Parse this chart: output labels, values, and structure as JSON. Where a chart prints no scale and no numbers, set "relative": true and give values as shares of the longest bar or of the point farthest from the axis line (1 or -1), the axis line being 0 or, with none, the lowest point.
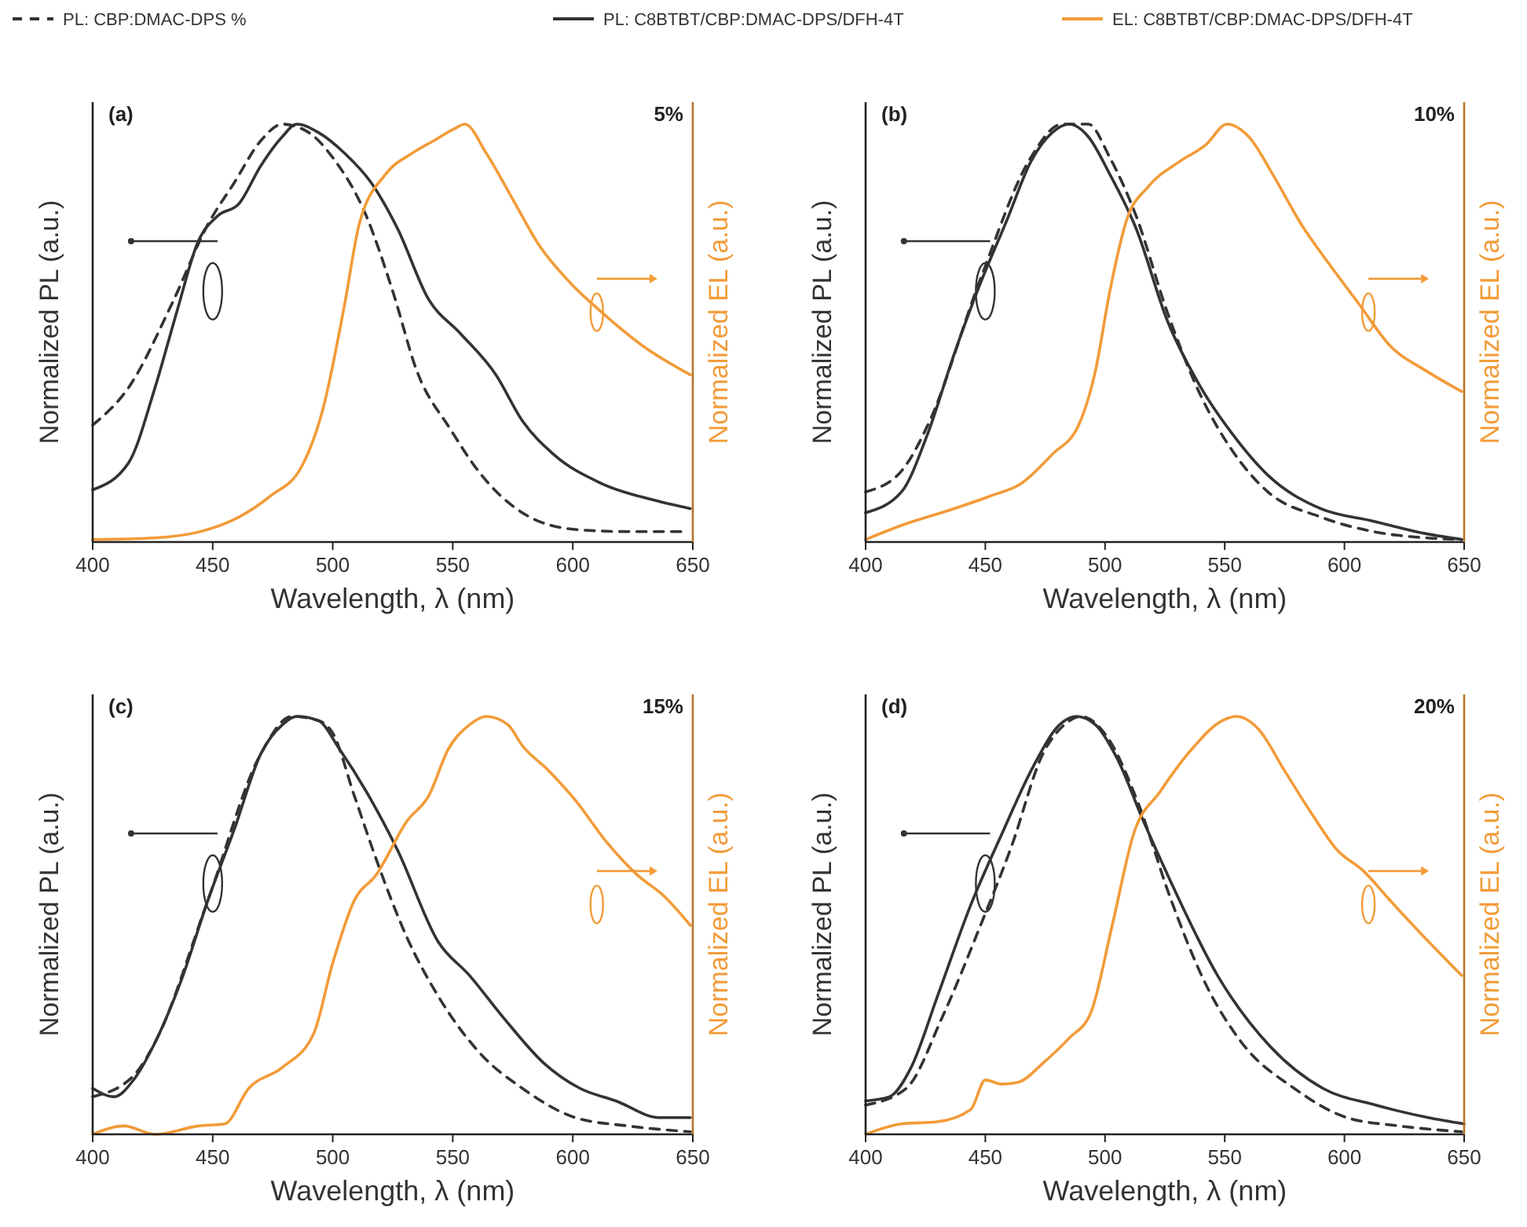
{
  "chart_data": [
    {
      "type": "line",
      "relative": true,
      "legend": "top",
      "marker": "none",
      "xlabel": "Wavelength, λ (nm)",
      "ylabel": "Normalized PL (a.u.)",
      "y2label": "Normalized EL (a.u.)",
      "xlim": [
        400,
        650
      ],
      "xticks": [
        400,
        450,
        500,
        550,
        600,
        650
      ],
      "annotations": [
        "(a)",
        "5%"
      ],
      "series": [
        {
          "name": "PL: CBP:DMAC-DPS %",
          "color": "#333333",
          "line_style": "dashed",
          "x": [
            400,
            415,
            433,
            448,
            459,
            470,
            479,
            490,
            500,
            514,
            525,
            535,
            549,
            562,
            579,
            601,
            623,
            647
          ],
          "values": [
            0.28,
            0.37,
            0.57,
            0.76,
            0.86,
            0.96,
            1.0,
            0.98,
            0.92,
            0.78,
            0.6,
            0.41,
            0.27,
            0.16,
            0.07,
            0.03,
            0.025,
            0.025
          ]
        },
        {
          "name": "PL: C8BTBT/CBP:DMAC-DPS/DFH-4T",
          "color": "#333333",
          "line_style": "solid",
          "x": [
            400,
            415,
            426,
            435,
            444,
            452,
            461,
            470,
            479,
            485,
            494,
            505,
            516,
            527,
            540,
            553,
            568,
            579,
            592,
            612,
            634,
            649
          ],
          "values": [
            0.125,
            0.19,
            0.37,
            0.55,
            0.72,
            0.78,
            0.81,
            0.9,
            0.97,
            1.0,
            0.98,
            0.93,
            0.86,
            0.75,
            0.58,
            0.5,
            0.4,
            0.29,
            0.21,
            0.14,
            0.1,
            0.08
          ]
        },
        {
          "name": "EL: C8BTBT/CBP:DMAC-DPS/DFH-4T",
          "color": "#f29b38",
          "line_style": "solid",
          "axis": "y2",
          "x": [
            400,
            426,
            448,
            461,
            474,
            487,
            496,
            505,
            511,
            522,
            533,
            542,
            551,
            555,
            564,
            575,
            586,
            599,
            612,
            629,
            649
          ],
          "values": [
            0.006,
            0.01,
            0.03,
            0.06,
            0.11,
            0.18,
            0.32,
            0.57,
            0.76,
            0.88,
            0.93,
            0.96,
            0.99,
            1.0,
            0.93,
            0.82,
            0.71,
            0.62,
            0.55,
            0.47,
            0.4
          ]
        }
      ]
    },
    {
      "type": "line",
      "relative": true,
      "marker": "none",
      "xlabel": "Wavelength, λ (nm)",
      "ylabel": "Normalized PL (a.u.)",
      "y2label": "Normalized EL (a.u.)",
      "xlim": [
        400,
        650
      ],
      "xticks": [
        400,
        450,
        500,
        550,
        600,
        650
      ],
      "annotations": [
        "(b)",
        "10%"
      ],
      "series": [
        {
          "color": "#333333",
          "line_style": "dashed",
          "x": [
            400,
            415,
            426,
            448,
            469,
            482,
            493,
            502,
            513,
            526,
            540,
            553,
            568,
            590,
            612,
            634,
            649
          ],
          "values": [
            0.12,
            0.17,
            0.28,
            0.63,
            0.92,
            1.0,
            1.0,
            0.92,
            0.78,
            0.55,
            0.35,
            0.22,
            0.12,
            0.06,
            0.025,
            0.01,
            0.006
          ]
        },
        {
          "color": "#333333",
          "line_style": "solid",
          "x": [
            400,
            415,
            426,
            437,
            448,
            459,
            469,
            478,
            485,
            493,
            502,
            513,
            526,
            540,
            553,
            568,
            590,
            612,
            634,
            649
          ],
          "values": [
            0.07,
            0.12,
            0.26,
            0.45,
            0.62,
            0.77,
            0.91,
            0.98,
            1.0,
            0.97,
            0.88,
            0.75,
            0.53,
            0.37,
            0.26,
            0.16,
            0.08,
            0.05,
            0.02,
            0.006
          ]
        },
        {
          "color": "#f29b38",
          "line_style": "solid",
          "axis": "y2",
          "x": [
            400,
            415,
            437,
            452,
            465,
            478,
            489,
            496,
            502,
            509,
            518,
            531,
            542,
            551,
            560,
            571,
            582,
            593,
            606,
            619,
            634,
            649
          ],
          "values": [
            0.006,
            0.04,
            0.08,
            0.11,
            0.14,
            0.21,
            0.28,
            0.41,
            0.6,
            0.77,
            0.85,
            0.91,
            0.95,
            1.0,
            0.97,
            0.87,
            0.76,
            0.67,
            0.57,
            0.47,
            0.41,
            0.36
          ]
        }
      ]
    },
    {
      "type": "line",
      "relative": true,
      "marker": "none",
      "xlabel": "Wavelength, λ (nm)",
      "ylabel": "Normalized PL (a.u.)",
      "y2label": "Normalized EL (a.u.)",
      "xlim": [
        400,
        650
      ],
      "xticks": [
        400,
        450,
        500,
        550,
        600,
        650
      ],
      "annotations": [
        "(c)",
        "15%"
      ],
      "series": [
        {
          "color": "#333333",
          "line_style": "dashed",
          "x": [
            400,
            417,
            426,
            448,
            470,
            483,
            494,
            500,
            509,
            518,
            531,
            544,
            562,
            579,
            601,
            623,
            649
          ],
          "values": [
            0.09,
            0.14,
            0.22,
            0.56,
            0.91,
            1.0,
            0.99,
            0.96,
            0.81,
            0.66,
            0.47,
            0.33,
            0.19,
            0.11,
            0.04,
            0.02,
            0.006
          ]
        },
        {
          "color": "#333333",
          "line_style": "solid",
          "x": [
            400,
            409,
            417,
            426,
            437,
            448,
            459,
            470,
            479,
            485,
            494,
            503,
            514,
            527,
            544,
            557,
            571,
            588,
            603,
            618,
            636,
            649
          ],
          "values": [
            0.11,
            0.09,
            0.13,
            0.22,
            0.37,
            0.56,
            0.73,
            0.91,
            0.98,
            1.0,
            0.99,
            0.92,
            0.82,
            0.68,
            0.46,
            0.38,
            0.28,
            0.17,
            0.11,
            0.08,
            0.04,
            0.04
          ]
        },
        {
          "color": "#f29b38",
          "line_style": "solid",
          "axis": "y2",
          "x": [
            400,
            413,
            426,
            444,
            455,
            465,
            479,
            492,
            500,
            509,
            518,
            531,
            540,
            548,
            557,
            564,
            573,
            579,
            590,
            601,
            614,
            627,
            638,
            649
          ],
          "values": [
            0,
            0.02,
            0,
            0.02,
            0.025,
            0.11,
            0.16,
            0.24,
            0.41,
            0.56,
            0.62,
            0.75,
            0.81,
            0.92,
            0.98,
            1.0,
            0.98,
            0.93,
            0.87,
            0.8,
            0.7,
            0.62,
            0.57,
            0.5
          ]
        }
      ]
    },
    {
      "type": "line",
      "relative": true,
      "marker": "none",
      "xlabel": "Wavelength, λ (nm)",
      "ylabel": "Normalized PL (a.u.)",
      "y2label": "Normalized EL (a.u.)",
      "xlim": [
        400,
        650
      ],
      "xticks": [
        400,
        450,
        500,
        550,
        600,
        650
      ],
      "annotations": [
        "(d)",
        "20%"
      ],
      "series": [
        {
          "color": "#333333",
          "line_style": "dashed",
          "x": [
            400,
            417,
            432,
            448,
            461,
            474,
            483,
            490,
            501,
            514,
            527,
            542,
            557,
            579,
            601,
            623,
            649
          ],
          "values": [
            0.07,
            0.11,
            0.28,
            0.5,
            0.69,
            0.91,
            0.98,
            1.0,
            0.95,
            0.79,
            0.57,
            0.36,
            0.22,
            0.11,
            0.04,
            0.02,
            0.006
          ]
        },
        {
          "color": "#333333",
          "line_style": "solid",
          "x": [
            400,
            410,
            419,
            430,
            444,
            457,
            470,
            481,
            488,
            496,
            505,
            516,
            527,
            547,
            569,
            591,
            613,
            635,
            650
          ],
          "values": [
            0.08,
            0.09,
            0.16,
            0.33,
            0.55,
            0.72,
            0.88,
            0.98,
            1.0,
            0.98,
            0.9,
            0.75,
            0.61,
            0.38,
            0.21,
            0.11,
            0.07,
            0.04,
            0.025
          ]
        },
        {
          "color": "#f29b38",
          "line_style": "solid",
          "axis": "y2",
          "x": [
            400,
            415,
            430,
            444,
            450,
            457,
            464,
            474,
            485,
            494,
            503,
            512,
            523,
            536,
            549,
            555,
            564,
            575,
            586,
            597,
            608,
            619,
            632,
            649
          ],
          "values": [
            0,
            0.025,
            0.03,
            0.06,
            0.13,
            0.12,
            0.125,
            0.17,
            0.23,
            0.29,
            0.5,
            0.72,
            0.82,
            0.92,
            0.99,
            1.0,
            0.97,
            0.87,
            0.77,
            0.68,
            0.63,
            0.56,
            0.48,
            0.38
          ]
        }
      ]
    }
  ]
}
